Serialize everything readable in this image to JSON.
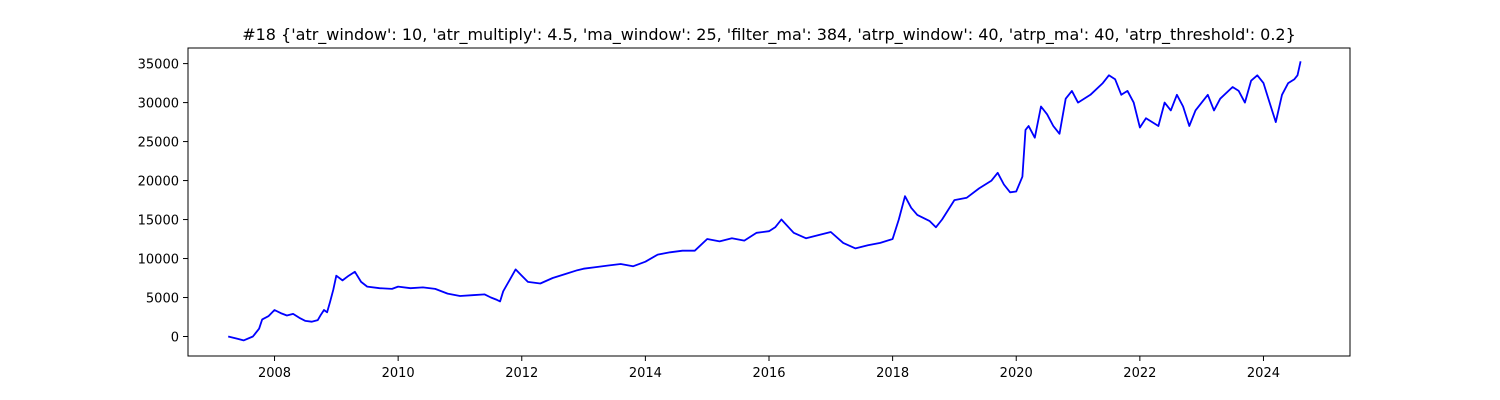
{
  "chart_data": {
    "type": "line",
    "title": "#18 {'atr_window': 10, 'atr_multiply': 4.5, 'ma_window': 25, 'filter_ma': 384, 'atrp_window': 40, 'atrp_ma': 40, 'atrp_threshold': 0.2}",
    "xlabel": "",
    "ylabel": "",
    "xlim": [
      2006.6,
      2025.4
    ],
    "ylim": [
      -2500,
      37000
    ],
    "x_ticks": [
      2008,
      2010,
      2012,
      2014,
      2016,
      2018,
      2020,
      2022,
      2024
    ],
    "x_tick_labels": [
      "2008",
      "2010",
      "2012",
      "2014",
      "2016",
      "2018",
      "2020",
      "2022",
      "2024"
    ],
    "y_ticks": [
      0,
      5000,
      10000,
      15000,
      20000,
      25000,
      30000,
      35000
    ],
    "y_tick_labels": [
      "0",
      "5000",
      "10000",
      "15000",
      "20000",
      "25000",
      "30000",
      "35000"
    ],
    "grid": false,
    "legend": "none",
    "series": [
      {
        "color": "#0000ff",
        "x": [
          2007.25,
          2007.4,
          2007.5,
          2007.65,
          2007.75,
          2007.8,
          2007.9,
          2008.0,
          2008.1,
          2008.2,
          2008.3,
          2008.4,
          2008.5,
          2008.6,
          2008.7,
          2008.75,
          2008.8,
          2008.85,
          2008.9,
          2008.95,
          2009.0,
          2009.1,
          2009.2,
          2009.3,
          2009.4,
          2009.5,
          2009.7,
          2009.9,
          2010.0,
          2010.2,
          2010.4,
          2010.6,
          2010.8,
          2011.0,
          2011.2,
          2011.4,
          2011.5,
          2011.6,
          2011.65,
          2011.7,
          2011.8,
          2011.9,
          2012.0,
          2012.1,
          2012.3,
          2012.5,
          2012.7,
          2012.9,
          2013.0,
          2013.2,
          2013.4,
          2013.6,
          2013.8,
          2014.0,
          2014.2,
          2014.4,
          2014.6,
          2014.8,
          2015.0,
          2015.2,
          2015.4,
          2015.6,
          2015.8,
          2016.0,
          2016.1,
          2016.2,
          2016.4,
          2016.6,
          2016.8,
          2017.0,
          2017.2,
          2017.4,
          2017.6,
          2017.8,
          2018.0,
          2018.1,
          2018.2,
          2018.3,
          2018.4,
          2018.6,
          2018.7,
          2018.8,
          2019.0,
          2019.2,
          2019.4,
          2019.6,
          2019.7,
          2019.8,
          2019.9,
          2020.0,
          2020.1,
          2020.15,
          2020.2,
          2020.3,
          2020.4,
          2020.5,
          2020.6,
          2020.7,
          2020.8,
          2020.9,
          2021.0,
          2021.2,
          2021.4,
          2021.5,
          2021.6,
          2021.7,
          2021.8,
          2021.9,
          2022.0,
          2022.1,
          2022.2,
          2022.3,
          2022.4,
          2022.5,
          2022.6,
          2022.7,
          2022.8,
          2022.9,
          2023.0,
          2023.1,
          2023.2,
          2023.3,
          2023.5,
          2023.6,
          2023.7,
          2023.8,
          2023.9,
          2024.0,
          2024.1,
          2024.2,
          2024.3,
          2024.4,
          2024.5,
          2024.55,
          2024.6
        ],
        "y": [
          0,
          -300,
          -500,
          0,
          1000,
          2200,
          2600,
          3400,
          3000,
          2700,
          2900,
          2400,
          2000,
          1900,
          2100,
          2800,
          3400,
          3100,
          4500,
          6000,
          7800,
          7200,
          7800,
          8300,
          7000,
          6400,
          6200,
          6100,
          6400,
          6200,
          6300,
          6100,
          5500,
          5200,
          5300,
          5400,
          5000,
          4700,
          4500,
          5800,
          7200,
          8600,
          7800,
          7000,
          6800,
          7500,
          8000,
          8500,
          8700,
          8900,
          9100,
          9300,
          9000,
          9600,
          10500,
          10800,
          11000,
          11000,
          12500,
          12200,
          12600,
          12300,
          13300,
          13500,
          14000,
          15000,
          13300,
          12600,
          13000,
          13400,
          12000,
          11300,
          11700,
          12000,
          12500,
          15000,
          18000,
          16500,
          15600,
          14800,
          14000,
          15000,
          17500,
          17800,
          19000,
          20000,
          21000,
          19500,
          18500,
          18600,
          20500,
          26500,
          27000,
          25500,
          29500,
          28500,
          27000,
          26000,
          30500,
          31500,
          30000,
          31000,
          32500,
          33500,
          33000,
          31000,
          31500,
          30000,
          26800,
          28000,
          27500,
          27000,
          30000,
          29000,
          31000,
          29500,
          27000,
          29000,
          30000,
          31000,
          29000,
          30500,
          32000,
          31500,
          30000,
          32800,
          33500,
          32500,
          30000,
          27500,
          31000,
          32500,
          33000,
          33500,
          35300
        ]
      }
    ]
  }
}
